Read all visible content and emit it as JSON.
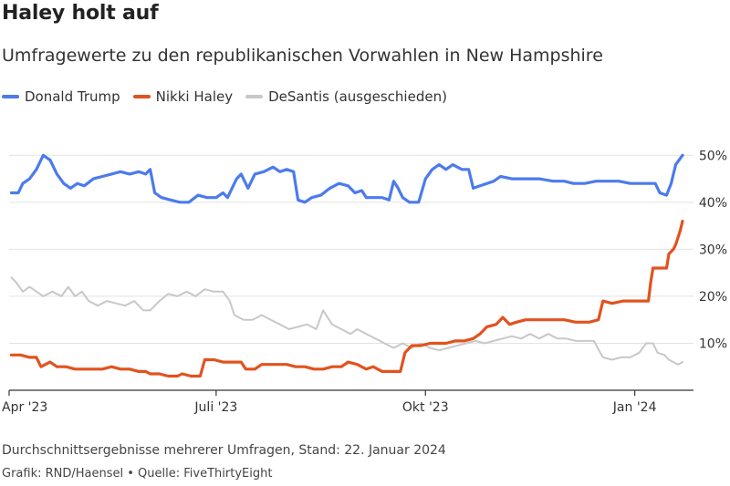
{
  "header": {
    "title": "Haley holt auf",
    "subtitle": "Umfragewerte zu den republikanischen Vorwahlen in New Hampshire"
  },
  "footer": {
    "note": "Durchschnittsergebnisse mehrerer Umfragen, Stand: 22. Januar 2024",
    "credit": "Grafik: RND/Haensel • Quelle: FiveThirtyEight"
  },
  "chart_data": {
    "type": "line",
    "title": "Haley holt auf",
    "subtitle": "Umfragewerte zu den republikanischen Vorwahlen in New Hampshire",
    "xlabel": "",
    "ylabel": "",
    "x_range": [
      "2023-04-01",
      "2024-01-22"
    ],
    "ylim": [
      0,
      52
    ],
    "y_ticks": [
      10,
      20,
      30,
      40,
      50
    ],
    "y_tick_labels": [
      "10%",
      "20%",
      "30%",
      "40%",
      "50%"
    ],
    "x_ticks": [
      "2023-04-01",
      "2023-07-01",
      "2023-10-01",
      "2024-01-01"
    ],
    "x_tick_labels": [
      "Apr '23",
      "Juli '23",
      "Okt '23",
      "Jan '24"
    ],
    "grid": true,
    "legend_position": "top-left",
    "series": [
      {
        "name": "Donald Trump",
        "color": "#4b7bec",
        "points": [
          [
            "2023-04-02",
            42
          ],
          [
            "2023-04-05",
            42
          ],
          [
            "2023-04-07",
            44
          ],
          [
            "2023-04-10",
            45
          ],
          [
            "2023-04-13",
            47
          ],
          [
            "2023-04-16",
            50
          ],
          [
            "2023-04-19",
            49
          ],
          [
            "2023-04-22",
            46
          ],
          [
            "2023-04-25",
            44
          ],
          [
            "2023-04-28",
            43
          ],
          [
            "2023-05-01",
            44
          ],
          [
            "2023-05-04",
            43.5
          ],
          [
            "2023-05-08",
            45
          ],
          [
            "2023-05-12",
            45.5
          ],
          [
            "2023-05-16",
            46
          ],
          [
            "2023-05-20",
            46.5
          ],
          [
            "2023-05-24",
            46
          ],
          [
            "2023-05-28",
            46.5
          ],
          [
            "2023-05-31",
            46
          ],
          [
            "2023-06-02",
            47
          ],
          [
            "2023-06-04",
            42
          ],
          [
            "2023-06-07",
            41
          ],
          [
            "2023-06-11",
            40.5
          ],
          [
            "2023-06-15",
            40
          ],
          [
            "2023-06-19",
            40
          ],
          [
            "2023-06-23",
            41.5
          ],
          [
            "2023-06-27",
            41
          ],
          [
            "2023-07-01",
            41
          ],
          [
            "2023-07-04",
            42
          ],
          [
            "2023-07-06",
            41
          ],
          [
            "2023-07-08",
            43
          ],
          [
            "2023-07-10",
            45
          ],
          [
            "2023-07-12",
            46
          ],
          [
            "2023-07-15",
            43
          ],
          [
            "2023-07-18",
            46
          ],
          [
            "2023-07-22",
            46.5
          ],
          [
            "2023-07-26",
            47.5
          ],
          [
            "2023-07-29",
            46.5
          ],
          [
            "2023-08-01",
            47
          ],
          [
            "2023-08-04",
            46.5
          ],
          [
            "2023-08-06",
            40.5
          ],
          [
            "2023-08-09",
            40
          ],
          [
            "2023-08-12",
            41
          ],
          [
            "2023-08-16",
            41.5
          ],
          [
            "2023-08-20",
            43
          ],
          [
            "2023-08-24",
            44
          ],
          [
            "2023-08-28",
            43.5
          ],
          [
            "2023-08-31",
            42
          ],
          [
            "2023-09-03",
            42.5
          ],
          [
            "2023-09-05",
            41
          ],
          [
            "2023-09-08",
            41
          ],
          [
            "2023-09-12",
            41
          ],
          [
            "2023-09-15",
            40.5
          ],
          [
            "2023-09-17",
            44.5
          ],
          [
            "2023-09-19",
            43
          ],
          [
            "2023-09-21",
            41
          ],
          [
            "2023-09-24",
            40
          ],
          [
            "2023-09-28",
            40
          ],
          [
            "2023-10-01",
            45
          ],
          [
            "2023-10-04",
            47
          ],
          [
            "2023-10-07",
            48
          ],
          [
            "2023-10-10",
            47
          ],
          [
            "2023-10-13",
            48
          ],
          [
            "2023-10-17",
            47
          ],
          [
            "2023-10-20",
            47
          ],
          [
            "2023-10-22",
            43
          ],
          [
            "2023-10-25",
            43.5
          ],
          [
            "2023-10-28",
            44
          ],
          [
            "2023-10-31",
            44.5
          ],
          [
            "2023-11-03",
            45.5
          ],
          [
            "2023-11-08",
            45
          ],
          [
            "2023-11-14",
            45
          ],
          [
            "2023-11-20",
            45
          ],
          [
            "2023-11-26",
            44.5
          ],
          [
            "2023-12-01",
            44.5
          ],
          [
            "2023-12-05",
            44
          ],
          [
            "2023-12-10",
            44
          ],
          [
            "2023-12-15",
            44.5
          ],
          [
            "2023-12-20",
            44.5
          ],
          [
            "2023-12-25",
            44.5
          ],
          [
            "2023-12-30",
            44
          ],
          [
            "2024-01-03",
            44
          ],
          [
            "2024-01-07",
            44
          ],
          [
            "2024-01-10",
            44
          ],
          [
            "2024-01-12",
            42
          ],
          [
            "2024-01-15",
            41.5
          ],
          [
            "2024-01-17",
            44
          ],
          [
            "2024-01-19",
            48
          ],
          [
            "2024-01-22",
            50
          ]
        ]
      },
      {
        "name": "Nikki Haley",
        "color": "#e2521e",
        "points": [
          [
            "2023-04-02",
            7.5
          ],
          [
            "2023-04-06",
            7.5
          ],
          [
            "2023-04-10",
            7
          ],
          [
            "2023-04-13",
            7
          ],
          [
            "2023-04-15",
            5
          ],
          [
            "2023-04-19",
            6
          ],
          [
            "2023-04-22",
            5
          ],
          [
            "2023-04-26",
            5
          ],
          [
            "2023-04-30",
            4.5
          ],
          [
            "2023-05-04",
            4.5
          ],
          [
            "2023-05-08",
            4.5
          ],
          [
            "2023-05-12",
            4.5
          ],
          [
            "2023-05-16",
            5
          ],
          [
            "2023-05-20",
            4.5
          ],
          [
            "2023-05-24",
            4.5
          ],
          [
            "2023-05-28",
            4
          ],
          [
            "2023-05-31",
            4
          ],
          [
            "2023-06-02",
            3.5
          ],
          [
            "2023-06-06",
            3.5
          ],
          [
            "2023-06-10",
            3
          ],
          [
            "2023-06-14",
            3
          ],
          [
            "2023-06-16",
            3.5
          ],
          [
            "2023-06-20",
            3
          ],
          [
            "2023-06-24",
            3
          ],
          [
            "2023-06-26",
            6.5
          ],
          [
            "2023-06-30",
            6.5
          ],
          [
            "2023-07-04",
            6
          ],
          [
            "2023-07-08",
            6
          ],
          [
            "2023-07-12",
            6
          ],
          [
            "2023-07-14",
            4.5
          ],
          [
            "2023-07-18",
            4.5
          ],
          [
            "2023-07-21",
            5.5
          ],
          [
            "2023-07-24",
            5.5
          ],
          [
            "2023-07-28",
            5.5
          ],
          [
            "2023-08-01",
            5.5
          ],
          [
            "2023-08-05",
            5
          ],
          [
            "2023-08-09",
            5
          ],
          [
            "2023-08-13",
            4.5
          ],
          [
            "2023-08-17",
            4.5
          ],
          [
            "2023-08-21",
            5
          ],
          [
            "2023-08-25",
            5
          ],
          [
            "2023-08-28",
            6
          ],
          [
            "2023-09-01",
            5.5
          ],
          [
            "2023-09-05",
            4.5
          ],
          [
            "2023-09-08",
            5
          ],
          [
            "2023-09-12",
            4
          ],
          [
            "2023-09-16",
            4
          ],
          [
            "2023-09-20",
            4
          ],
          [
            "2023-09-22",
            8
          ],
          [
            "2023-09-25",
            9.5
          ],
          [
            "2023-09-29",
            9.5
          ],
          [
            "2023-10-03",
            10
          ],
          [
            "2023-10-07",
            10
          ],
          [
            "2023-10-10",
            10
          ],
          [
            "2023-10-14",
            10.5
          ],
          [
            "2023-10-18",
            10.5
          ],
          [
            "2023-10-22",
            11
          ],
          [
            "2023-10-25",
            12
          ],
          [
            "2023-10-28",
            13.5
          ],
          [
            "2023-11-01",
            14
          ],
          [
            "2023-11-04",
            15.5
          ],
          [
            "2023-11-07",
            14
          ],
          [
            "2023-11-10",
            14.5
          ],
          [
            "2023-11-14",
            15
          ],
          [
            "2023-11-20",
            15
          ],
          [
            "2023-11-26",
            15
          ],
          [
            "2023-12-01",
            15
          ],
          [
            "2023-12-06",
            14.5
          ],
          [
            "2023-12-12",
            14.5
          ],
          [
            "2023-12-16",
            15
          ],
          [
            "2023-12-18",
            19
          ],
          [
            "2023-12-22",
            18.5
          ],
          [
            "2023-12-27",
            19
          ],
          [
            "2024-01-01",
            19
          ],
          [
            "2024-01-05",
            19
          ],
          [
            "2024-01-07",
            19
          ],
          [
            "2024-01-08",
            23
          ],
          [
            "2024-01-09",
            26
          ],
          [
            "2024-01-13",
            26
          ],
          [
            "2024-01-15",
            26
          ],
          [
            "2024-01-16",
            29
          ],
          [
            "2024-01-18",
            30
          ],
          [
            "2024-01-19",
            31
          ],
          [
            "2024-01-21",
            34
          ],
          [
            "2024-01-22",
            36
          ]
        ]
      },
      {
        "name": "DeSantis (ausgeschieden)",
        "color": "#c8c8c8",
        "points": [
          [
            "2023-04-02",
            24
          ],
          [
            "2023-04-04",
            23
          ],
          [
            "2023-04-07",
            21
          ],
          [
            "2023-04-10",
            22
          ],
          [
            "2023-04-13",
            21
          ],
          [
            "2023-04-16",
            20
          ],
          [
            "2023-04-20",
            21
          ],
          [
            "2023-04-24",
            20
          ],
          [
            "2023-04-27",
            22
          ],
          [
            "2023-04-30",
            20
          ],
          [
            "2023-05-03",
            21
          ],
          [
            "2023-05-06",
            19
          ],
          [
            "2023-05-10",
            18
          ],
          [
            "2023-05-14",
            19
          ],
          [
            "2023-05-18",
            18.5
          ],
          [
            "2023-05-22",
            18
          ],
          [
            "2023-05-26",
            19
          ],
          [
            "2023-05-30",
            17
          ],
          [
            "2023-06-02",
            17
          ],
          [
            "2023-06-06",
            19
          ],
          [
            "2023-06-10",
            20.5
          ],
          [
            "2023-06-14",
            20
          ],
          [
            "2023-06-18",
            21
          ],
          [
            "2023-06-22",
            20
          ],
          [
            "2023-06-26",
            21.5
          ],
          [
            "2023-06-30",
            21
          ],
          [
            "2023-07-04",
            21
          ],
          [
            "2023-07-07",
            19
          ],
          [
            "2023-07-09",
            16
          ],
          [
            "2023-07-13",
            15
          ],
          [
            "2023-07-17",
            15
          ],
          [
            "2023-07-21",
            16
          ],
          [
            "2023-07-25",
            15
          ],
          [
            "2023-07-29",
            14
          ],
          [
            "2023-08-02",
            13
          ],
          [
            "2023-08-06",
            13.5
          ],
          [
            "2023-08-10",
            14
          ],
          [
            "2023-08-14",
            13
          ],
          [
            "2023-08-17",
            17
          ],
          [
            "2023-08-21",
            14
          ],
          [
            "2023-08-25",
            13
          ],
          [
            "2023-08-29",
            12
          ],
          [
            "2023-09-01",
            13
          ],
          [
            "2023-09-05",
            12
          ],
          [
            "2023-09-09",
            11
          ],
          [
            "2023-09-13",
            10
          ],
          [
            "2023-09-17",
            9
          ],
          [
            "2023-09-21",
            10
          ],
          [
            "2023-09-25",
            9
          ],
          [
            "2023-09-29",
            10
          ],
          [
            "2023-10-03",
            9
          ],
          [
            "2023-10-07",
            8.5
          ],
          [
            "2023-10-11",
            9
          ],
          [
            "2023-10-15",
            9.5
          ],
          [
            "2023-10-19",
            10
          ],
          [
            "2023-10-23",
            10.5
          ],
          [
            "2023-10-27",
            10
          ],
          [
            "2023-10-31",
            10.5
          ],
          [
            "2023-11-04",
            11
          ],
          [
            "2023-11-08",
            11.5
          ],
          [
            "2023-11-12",
            11
          ],
          [
            "2023-11-16",
            12
          ],
          [
            "2023-11-20",
            11
          ],
          [
            "2023-11-24",
            12
          ],
          [
            "2023-11-28",
            11
          ],
          [
            "2023-12-02",
            11
          ],
          [
            "2023-12-06",
            10.5
          ],
          [
            "2023-12-10",
            10.5
          ],
          [
            "2023-12-14",
            10.5
          ],
          [
            "2023-12-18",
            7
          ],
          [
            "2023-12-22",
            6.5
          ],
          [
            "2023-12-26",
            7
          ],
          [
            "2023-12-30",
            7
          ],
          [
            "2024-01-03",
            8
          ],
          [
            "2024-01-06",
            10
          ],
          [
            "2024-01-09",
            10
          ],
          [
            "2024-01-11",
            8
          ],
          [
            "2024-01-14",
            7.5
          ],
          [
            "2024-01-16",
            6.5
          ],
          [
            "2024-01-18",
            6
          ],
          [
            "2024-01-20",
            5.5
          ],
          [
            "2024-01-22",
            6
          ]
        ]
      }
    ]
  }
}
